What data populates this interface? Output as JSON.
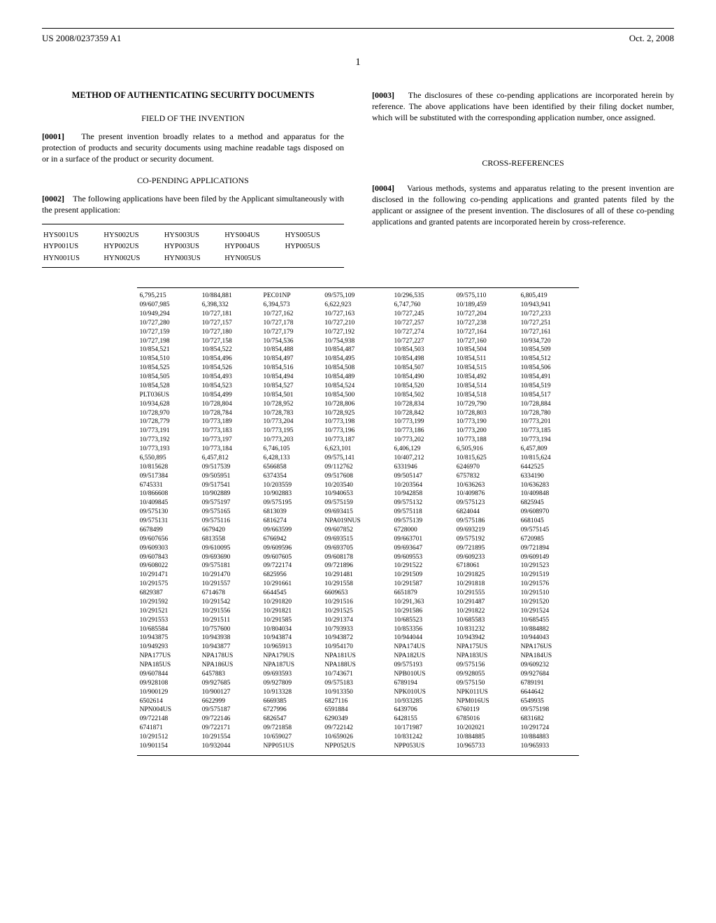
{
  "header": {
    "pub_number": "US 2008/0237359 A1",
    "pub_date": "Oct. 2, 2008"
  },
  "page_number": "1",
  "left_col": {
    "title": "METHOD OF AUTHENTICATING SECURITY DOCUMENTS",
    "field_header": "FIELD OF THE INVENTION",
    "para1_label": "[0001]",
    "para1": "The present invention broadly relates to a method and apparatus for the protection of products and security documents using machine readable tags disposed on or in a surface of the product or security document.",
    "copending_header": "CO-PENDING APPLICATIONS",
    "para2_label": "[0002]",
    "para2": "The following applications have been filed by the Applicant simultaneously with the present application:"
  },
  "docket": {
    "rows": [
      [
        "HYS001US",
        "HYS002US",
        "HYS003US",
        "HYS004US",
        "HYS005US"
      ],
      [
        "HYP001US",
        "HYP002US",
        "HYP003US",
        "HYP004US",
        "HYP005US"
      ],
      [
        "HYN001US",
        "HYN002US",
        "HYN003US",
        "HYN005US",
        ""
      ]
    ]
  },
  "right_col": {
    "para3_label": "[0003]",
    "para3": "The disclosures of these co-pending applications are incorporated herein by reference. The above applications have been identified by their filing docket number, which will be substituted with the corresponding application number, once assigned.",
    "crossref_header": "CROSS-REFERENCES",
    "para4_label": "[0004]",
    "para4": "Various methods, systems and apparatus relating to the present invention are disclosed in the following co-pending applications and granted patents filed by the applicant or assignee of the present invention. The disclosures of all of these co-pending applications and granted patents are incorporated herein by cross-reference."
  },
  "crossref_table": {
    "rows": [
      [
        "6,795,215",
        "10/884,881",
        "PEC01NP",
        "09/575,109",
        "10/296,535",
        "09/575,110",
        "6,805,419"
      ],
      [
        "09/607,985",
        "6,398,332",
        "6,394,573",
        "6,622,923",
        "6,747,760",
        "10/189,459",
        "10/943,941"
      ],
      [
        "10/949,294",
        "10/727,181",
        "10/727,162",
        "10/727,163",
        "10/727,245",
        "10/727,204",
        "10/727,233"
      ],
      [
        "10/727,280",
        "10/727,157",
        "10/727,178",
        "10/727,210",
        "10/727,257",
        "10/727,238",
        "10/727,251"
      ],
      [
        "10/727,159",
        "10/727,180",
        "10/727,179",
        "10/727,192",
        "10/727,274",
        "10/727,164",
        "10/727,161"
      ],
      [
        "10/727,198",
        "10/727,158",
        "10/754,536",
        "10/754,938",
        "10/727,227",
        "10/727,160",
        "10/934,720"
      ],
      [
        "10/854,521",
        "10/854,522",
        "10/854,488",
        "10/854,487",
        "10/854,503",
        "10/854,504",
        "10/854,509"
      ],
      [
        "10/854,510",
        "10/854,496",
        "10/854,497",
        "10/854,495",
        "10/854,498",
        "10/854,511",
        "10/854,512"
      ],
      [
        "10/854,525",
        "10/854,526",
        "10/854,516",
        "10/854,508",
        "10/854,507",
        "10/854,515",
        "10/854,506"
      ],
      [
        "10/854,505",
        "10/854,493",
        "10/854,494",
        "10/854,489",
        "10/854,490",
        "10/854,492",
        "10/854,491"
      ],
      [
        "10/854,528",
        "10/854,523",
        "10/854,527",
        "10/854,524",
        "10/854,520",
        "10/854,514",
        "10/854,519"
      ],
      [
        "PLT036US",
        "10/854,499",
        "10/854,501",
        "10/854,500",
        "10/854,502",
        "10/854,518",
        "10/854,517"
      ],
      [
        "10/934,628",
        "10/728,804",
        "10/728,952",
        "10/728,806",
        "10/728,834",
        "10/729,790",
        "10/728,884"
      ],
      [
        "10/728,970",
        "10/728,784",
        "10/728,783",
        "10/728,925",
        "10/728,842",
        "10/728,803",
        "10/728,780"
      ],
      [
        "10/728,779",
        "10/773,189",
        "10/773,204",
        "10/773,198",
        "10/773,199",
        "10/773,190",
        "10/773,201"
      ],
      [
        "10/773,191",
        "10/773,183",
        "10/773,195",
        "10/773,196",
        "10/773,186",
        "10/773,200",
        "10/773,185"
      ],
      [
        "10/773,192",
        "10/773,197",
        "10/773,203",
        "10/773,187",
        "10/773,202",
        "10/773,188",
        "10/773,194"
      ],
      [
        "10/773,193",
        "10/773,184",
        "6,746,105",
        "6,623,101",
        "6,406,129",
        "6,505,916",
        "6,457,809"
      ],
      [
        "6,550,895",
        "6,457,812",
        "6,428,133",
        "09/575,141",
        "10/407,212",
        "10/815,625",
        "10/815,624"
      ],
      [
        "10/815628",
        "09/517539",
        "6566858",
        "09/112762",
        "6331946",
        "6246970",
        "6442525"
      ],
      [
        "09/517384",
        "09/505951",
        "6374354",
        "09/517608",
        "09/505147",
        "6757832",
        "6334190"
      ],
      [
        "6745331",
        "09/517541",
        "10/203559",
        "10/203540",
        "10/203564",
        "10/636263",
        "10/636283"
      ],
      [
        "10/866608",
        "10/902889",
        "10/902883",
        "10/940653",
        "10/942858",
        "10/409876",
        "10/409848"
      ],
      [
        "10/409845",
        "09/575197",
        "09/575195",
        "09/575159",
        "09/575132",
        "09/575123",
        "6825945"
      ],
      [
        "09/575130",
        "09/575165",
        "6813039",
        "09/693415",
        "09/575118",
        "6824044",
        "09/608970"
      ],
      [
        "09/575131",
        "09/575116",
        "6816274",
        "NPA019NUS",
        "09/575139",
        "09/575186",
        "6681045"
      ],
      [
        "6678499",
        "6679420",
        "09/663599",
        "09/607852",
        "6728000",
        "09/693219",
        "09/575145"
      ],
      [
        "09/607656",
        "6813558",
        "6766942",
        "09/693515",
        "09/663701",
        "09/575192",
        "6720985"
      ],
      [
        "09/609303",
        "09/610095",
        "09/609596",
        "09/693705",
        "09/693647",
        "09/721895",
        "09/721894"
      ],
      [
        "09/607843",
        "09/693690",
        "09/607605",
        "09/608178",
        "09/609553",
        "09/609233",
        "09/609149"
      ],
      [
        "09/608022",
        "09/575181",
        "09/722174",
        "09/721896",
        "10/291522",
        "6718061",
        "10/291523"
      ],
      [
        "10/291471",
        "10/291470",
        "6825956",
        "10/291481",
        "10/291509",
        "10/291825",
        "10/291519"
      ],
      [
        "10/291575",
        "10/291557",
        "10/291661",
        "10/291558",
        "10/291587",
        "10/291818",
        "10/291576"
      ],
      [
        "6829387",
        "6714678",
        "6644545",
        "6609653",
        "6651879",
        "10/291555",
        "10/291510"
      ],
      [
        "10/291592",
        "10/291542",
        "10/291820",
        "10/291516",
        "10/291,363",
        "10/291487",
        "10/291520"
      ],
      [
        "10/291521",
        "10/291556",
        "10/291821",
        "10/291525",
        "10/291586",
        "10/291822",
        "10/291524"
      ],
      [
        "10/291553",
        "10/291511",
        "10/291585",
        "10/291374",
        "10/685523",
        "10/685583",
        "10/685455"
      ],
      [
        "10/685584",
        "10/757600",
        "10/804034",
        "10/793933",
        "10/853356",
        "10/831232",
        "10/884882"
      ],
      [
        "10/943875",
        "10/943938",
        "10/943874",
        "10/943872",
        "10/944044",
        "10/943942",
        "10/944043"
      ],
      [
        "10/949293",
        "10/943877",
        "10/965913",
        "10/954170",
        "NPA174US",
        "NPA175US",
        "NPA176US"
      ],
      [
        "NPA177US",
        "NPA178US",
        "NPA179US",
        "NPA181US",
        "NPA182US",
        "NPA183US",
        "NPA184US"
      ],
      [
        "NPA185US",
        "NPA186US",
        "NPA187US",
        "NPA188US",
        "09/575193",
        "09/575156",
        "09/609232"
      ],
      [
        "09/607844",
        "6457883",
        "09/693593",
        "10/743671",
        "NPB010US",
        "09/928055",
        "09/927684"
      ],
      [
        "09/928108",
        "09/927685",
        "09/927809",
        "09/575183",
        "6789194",
        "09/575150",
        "6789191"
      ],
      [
        "10/900129",
        "10/900127",
        "10/913328",
        "10/913350",
        "NPK010US",
        "NPK011US",
        "6644642"
      ],
      [
        "6502614",
        "6622999",
        "6669385",
        "6827116",
        "10/933285",
        "NPM016US",
        "6549935"
      ],
      [
        "NPN004US",
        "09/575187",
        "6727996",
        "6591884",
        "6439706",
        "6760119",
        "09/575198"
      ],
      [
        "09/722148",
        "09/722146",
        "6826547",
        "6290349",
        "6428155",
        "6785016",
        "6831682"
      ],
      [
        "6741871",
        "09/722171",
        "09/721858",
        "09/722142",
        "10/171987",
        "10/202021",
        "10/291724"
      ],
      [
        "10/291512",
        "10/291554",
        "10/659027",
        "10/659026",
        "10/831242",
        "10/884885",
        "10/884883"
      ],
      [
        "10/901154",
        "10/932044",
        "NPP051US",
        "NPP052US",
        "NPP053US",
        "10/965733",
        "10/965933"
      ]
    ]
  }
}
